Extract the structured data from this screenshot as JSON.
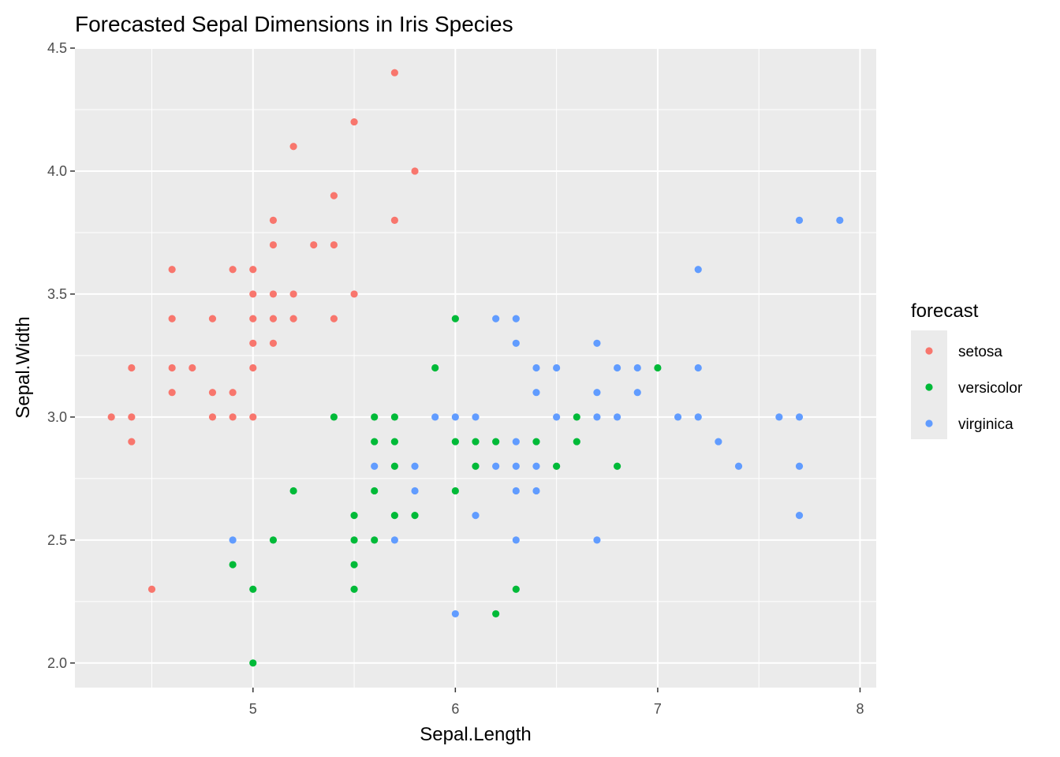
{
  "chart_data": {
    "type": "scatter",
    "title": "Forecasted Sepal Dimensions in Iris Species",
    "xlabel": "Sepal.Length",
    "ylabel": "Sepal.Width",
    "xlim": [
      4.12,
      8.08
    ],
    "ylim": [
      1.9,
      4.5
    ],
    "x_ticks": [
      5,
      6,
      7,
      8
    ],
    "x_tick_labels": [
      "5",
      "6",
      "7",
      "8"
    ],
    "y_ticks": [
      2.0,
      2.5,
      3.0,
      3.5,
      4.0,
      4.5
    ],
    "y_tick_labels": [
      "2.0",
      "2.5",
      "3.0",
      "3.5",
      "4.0",
      "4.5"
    ],
    "grid": true,
    "background": "#ebebeb",
    "grid_color": "#ffffff",
    "legend": {
      "title": "forecast",
      "position": "right"
    },
    "series": [
      {
        "name": "setosa",
        "color": "#f8766d",
        "points": [
          [
            4.3,
            3.0
          ],
          [
            4.4,
            3.2
          ],
          [
            4.4,
            3.0
          ],
          [
            4.4,
            2.9
          ],
          [
            4.5,
            2.3
          ],
          [
            4.6,
            3.6
          ],
          [
            4.6,
            3.4
          ],
          [
            4.6,
            3.2
          ],
          [
            4.6,
            3.1
          ],
          [
            4.7,
            3.2
          ],
          [
            4.8,
            3.4
          ],
          [
            4.8,
            3.1
          ],
          [
            4.8,
            3.0
          ],
          [
            4.9,
            3.6
          ],
          [
            4.9,
            3.1
          ],
          [
            4.9,
            3.0
          ],
          [
            5.0,
            3.6
          ],
          [
            5.0,
            3.5
          ],
          [
            5.0,
            3.4
          ],
          [
            5.0,
            3.3
          ],
          [
            5.0,
            3.2
          ],
          [
            5.0,
            3.0
          ],
          [
            5.1,
            3.8
          ],
          [
            5.1,
            3.7
          ],
          [
            5.1,
            3.5
          ],
          [
            5.1,
            3.4
          ],
          [
            5.1,
            3.3
          ],
          [
            5.2,
            4.1
          ],
          [
            5.2,
            3.5
          ],
          [
            5.2,
            3.4
          ],
          [
            5.3,
            3.7
          ],
          [
            5.4,
            3.9
          ],
          [
            5.4,
            3.7
          ],
          [
            5.4,
            3.4
          ],
          [
            5.5,
            4.2
          ],
          [
            5.5,
            3.5
          ],
          [
            5.7,
            4.4
          ],
          [
            5.7,
            3.8
          ],
          [
            5.8,
            4.0
          ]
        ]
      },
      {
        "name": "versicolor",
        "color": "#00ba38",
        "points": [
          [
            4.9,
            2.4
          ],
          [
            5.0,
            2.3
          ],
          [
            5.0,
            2.0
          ],
          [
            5.1,
            2.5
          ],
          [
            5.2,
            2.7
          ],
          [
            5.4,
            3.0
          ],
          [
            5.5,
            2.6
          ],
          [
            5.5,
            2.5
          ],
          [
            5.5,
            2.4
          ],
          [
            5.5,
            2.3
          ],
          [
            5.6,
            3.0
          ],
          [
            5.6,
            2.9
          ],
          [
            5.6,
            2.7
          ],
          [
            5.6,
            2.5
          ],
          [
            5.7,
            3.0
          ],
          [
            5.7,
            2.9
          ],
          [
            5.7,
            2.8
          ],
          [
            5.7,
            2.6
          ],
          [
            5.8,
            2.6
          ],
          [
            5.9,
            3.2
          ],
          [
            6.0,
            3.4
          ],
          [
            6.0,
            2.9
          ],
          [
            6.0,
            2.7
          ],
          [
            6.1,
            2.9
          ],
          [
            6.1,
            2.8
          ],
          [
            6.2,
            2.9
          ],
          [
            6.2,
            2.2
          ],
          [
            6.3,
            2.3
          ],
          [
            6.4,
            2.9
          ],
          [
            6.5,
            2.8
          ],
          [
            6.6,
            3.0
          ],
          [
            6.6,
            2.9
          ],
          [
            6.8,
            2.8
          ],
          [
            7.0,
            3.2
          ]
        ]
      },
      {
        "name": "virginica",
        "color": "#619cff",
        "points": [
          [
            4.9,
            2.5
          ],
          [
            5.6,
            2.8
          ],
          [
            5.7,
            2.5
          ],
          [
            5.8,
            2.8
          ],
          [
            5.8,
            2.7
          ],
          [
            5.9,
            3.0
          ],
          [
            6.0,
            3.0
          ],
          [
            6.0,
            2.2
          ],
          [
            6.1,
            3.0
          ],
          [
            6.1,
            2.6
          ],
          [
            6.2,
            3.4
          ],
          [
            6.2,
            2.8
          ],
          [
            6.3,
            3.4
          ],
          [
            6.3,
            3.3
          ],
          [
            6.3,
            2.9
          ],
          [
            6.3,
            2.8
          ],
          [
            6.3,
            2.7
          ],
          [
            6.3,
            2.5
          ],
          [
            6.4,
            3.2
          ],
          [
            6.4,
            3.1
          ],
          [
            6.4,
            2.8
          ],
          [
            6.4,
            2.7
          ],
          [
            6.5,
            3.2
          ],
          [
            6.5,
            3.0
          ],
          [
            6.7,
            3.3
          ],
          [
            6.7,
            3.1
          ],
          [
            6.7,
            3.0
          ],
          [
            6.7,
            2.5
          ],
          [
            6.8,
            3.2
          ],
          [
            6.8,
            3.0
          ],
          [
            6.9,
            3.2
          ],
          [
            6.9,
            3.1
          ],
          [
            7.1,
            3.0
          ],
          [
            7.2,
            3.6
          ],
          [
            7.2,
            3.2
          ],
          [
            7.2,
            3.0
          ],
          [
            7.3,
            2.9
          ],
          [
            7.4,
            2.8
          ],
          [
            7.6,
            3.0
          ],
          [
            7.7,
            3.8
          ],
          [
            7.7,
            3.0
          ],
          [
            7.7,
            2.8
          ],
          [
            7.7,
            2.6
          ],
          [
            7.9,
            3.8
          ]
        ]
      }
    ]
  }
}
